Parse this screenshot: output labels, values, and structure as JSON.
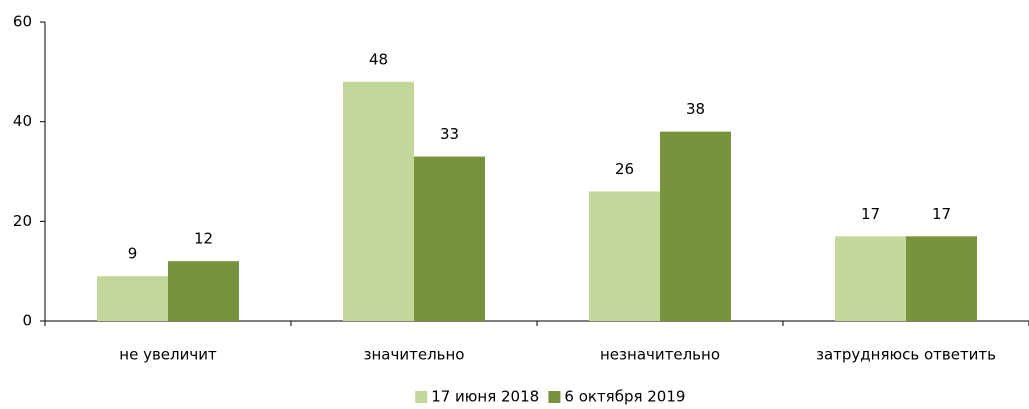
{
  "chart_data": {
    "type": "bar",
    "categories": [
      "не увеличит",
      "значительно",
      "незначительно",
      "затрудняюсь ответить"
    ],
    "series": [
      {
        "name": "17 июня 2018",
        "color": "#c4d79b",
        "values": [
          9,
          48,
          26,
          17
        ]
      },
      {
        "name": "6 октября 2019",
        "color": "#77933c",
        "values": [
          12,
          33,
          38,
          17
        ]
      }
    ],
    "ylim": [
      0,
      60
    ],
    "yticks": [
      0,
      20,
      40,
      60
    ],
    "grid": false,
    "legend": "bottom"
  }
}
